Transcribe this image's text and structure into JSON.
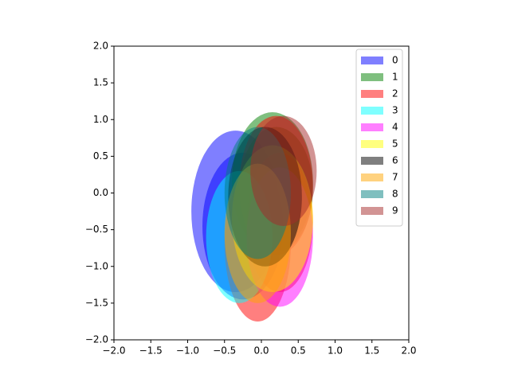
{
  "chart_data": {
    "type": "ellipse",
    "alpha": 0.5,
    "xlim": [
      -2,
      2
    ],
    "ylim": [
      -2,
      2
    ],
    "xticks": [
      {
        "value": -2,
        "label": "−2.0"
      },
      {
        "value": -1.5,
        "label": "−1.5"
      },
      {
        "value": -1,
        "label": "−1.0"
      },
      {
        "value": -0.5,
        "label": "−0.5"
      },
      {
        "value": 0,
        "label": "0.0"
      },
      {
        "value": 0.5,
        "label": "0.5"
      },
      {
        "value": 1,
        "label": "1.0"
      },
      {
        "value": 1.5,
        "label": "1.5"
      },
      {
        "value": 2,
        "label": "2.0"
      }
    ],
    "yticks": [
      {
        "value": -2,
        "label": "−2.0"
      },
      {
        "value": -1.5,
        "label": "−1.5"
      },
      {
        "value": -1,
        "label": "−1.0"
      },
      {
        "value": -0.5,
        "label": "−0.5"
      },
      {
        "value": 0,
        "label": "0.0"
      },
      {
        "value": 0.5,
        "label": "0.5"
      },
      {
        "value": 1,
        "label": "1.0"
      },
      {
        "value": 1.5,
        "label": "1.5"
      },
      {
        "value": 2,
        "label": "2.0"
      }
    ],
    "legend": "upper right",
    "series": [
      {
        "name": "0",
        "color": "#0000ff",
        "x": [
          -0.35,
          -0.25
        ],
        "y": [
          -0.25,
          -0.45
        ],
        "width": [
          1.2,
          1.1
        ],
        "height": [
          2.2,
          2.0
        ]
      },
      {
        "name": "1",
        "color": "#008000",
        "x": [
          0.15,
          0.2
        ],
        "y": [
          0.15,
          0.05
        ],
        "width": [
          1.1,
          1.0
        ],
        "height": [
          1.9,
          1.7
        ]
      },
      {
        "name": "2",
        "color": "#ff0000",
        "x": [
          0.2,
          -0.05,
          0.25
        ],
        "y": [
          0.1,
          -0.7,
          -0.4
        ],
        "width": [
          1.0,
          0.9,
          0.9
        ],
        "height": [
          1.9,
          2.1,
          1.9
        ]
      },
      {
        "name": "3",
        "color": "#00ffff",
        "x": [
          -0.3
        ],
        "y": [
          -0.6
        ],
        "width": [
          0.9
        ],
        "height": [
          1.8
        ]
      },
      {
        "name": "4",
        "color": "#ff00ff",
        "x": [
          0.25
        ],
        "y": [
          -0.6
        ],
        "width": [
          0.9
        ],
        "height": [
          1.9
        ]
      },
      {
        "name": "5",
        "color": "#ffff00",
        "x": [
          0.15
        ],
        "y": [
          -0.35
        ],
        "width": [
          1.1
        ],
        "height": [
          2.0
        ]
      },
      {
        "name": "6",
        "color": "#000000",
        "x": [
          0.05
        ],
        "y": [
          -0.05
        ],
        "width": [
          1.0
        ],
        "height": [
          1.9
        ]
      },
      {
        "name": "7",
        "color": "#ffa500",
        "x": [
          -0.05
        ],
        "y": [
          -0.55
        ],
        "width": [
          0.9
        ],
        "height": [
          1.9
        ]
      },
      {
        "name": "8",
        "color": "#008080",
        "x": [
          -0.05
        ],
        "y": [
          0.0
        ],
        "width": [
          0.9
        ],
        "height": [
          1.8
        ]
      },
      {
        "name": "9",
        "color": "#a52a2a",
        "x": [
          0.3
        ],
        "y": [
          0.3
        ],
        "width": [
          0.9
        ],
        "height": [
          1.5
        ]
      }
    ]
  }
}
